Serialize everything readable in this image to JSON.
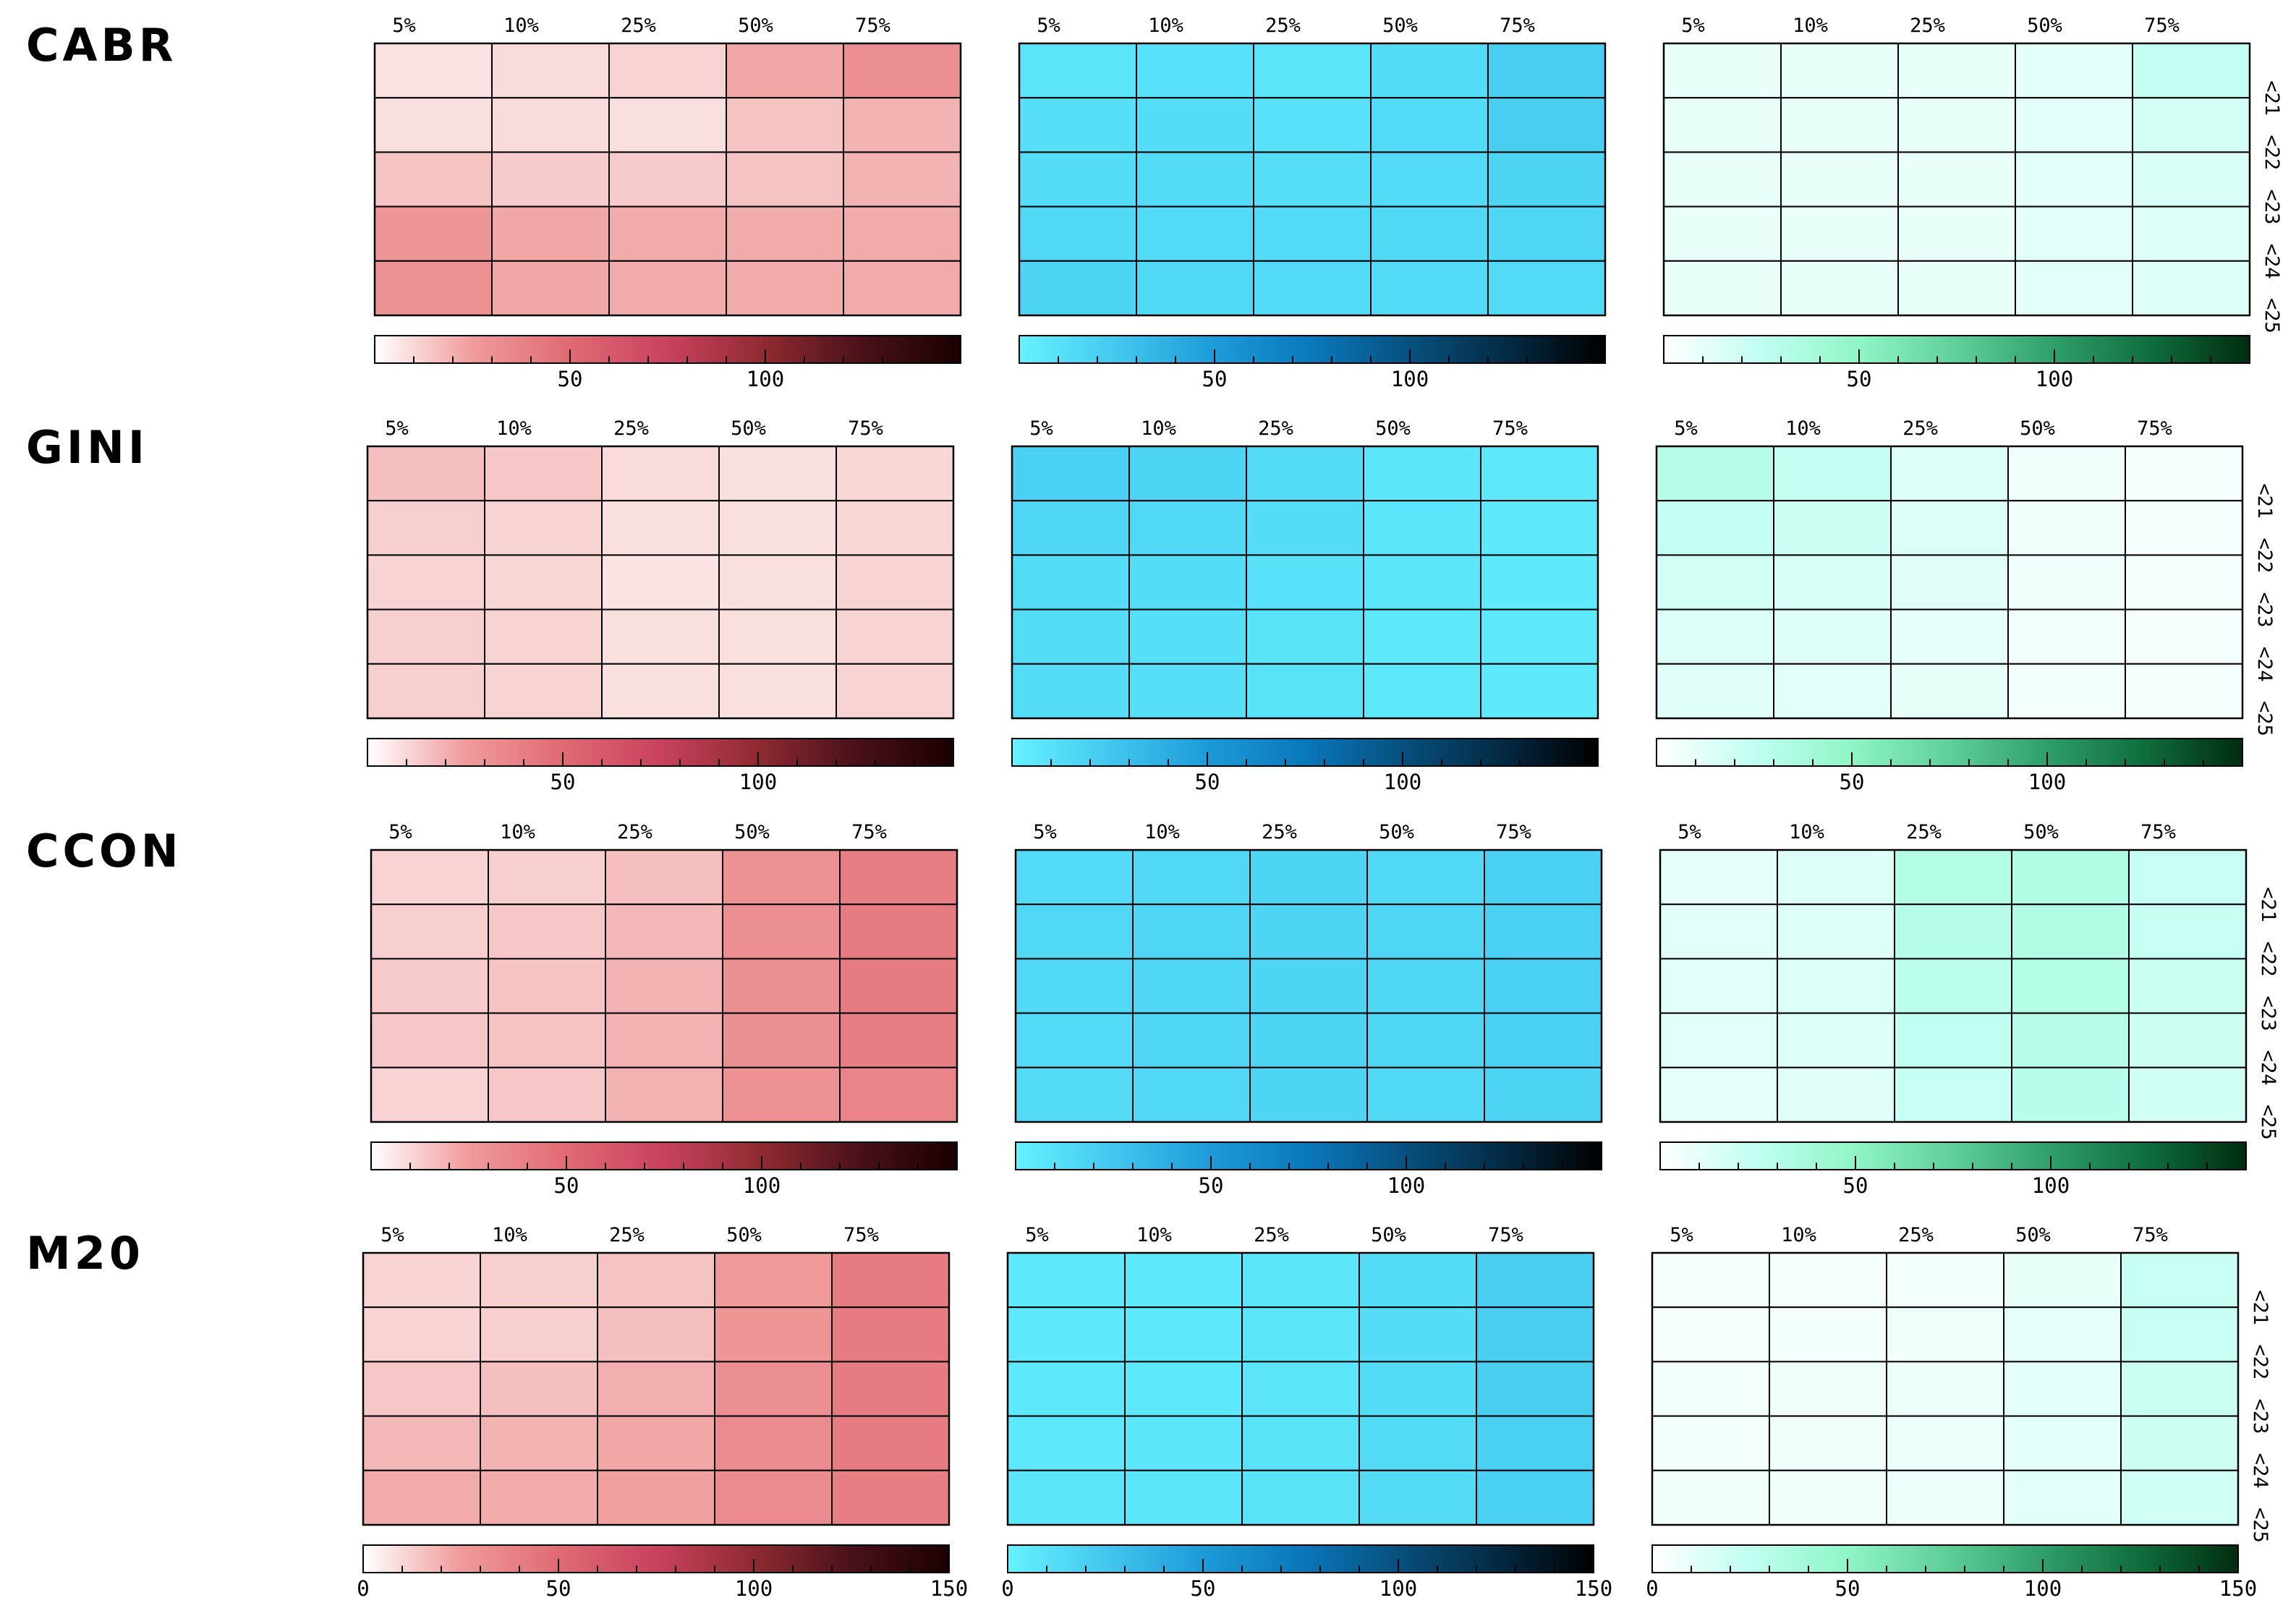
{
  "chart_data": {
    "type": "heatmap",
    "columns": [
      "5%",
      "10%",
      "25%",
      "50%",
      "75%"
    ],
    "rows": [
      "<21",
      "<22",
      "<23",
      "<24",
      "<25"
    ],
    "colorbar": {
      "ticks_short": [
        "50",
        "100"
      ],
      "ticks_full": [
        "0",
        "50",
        "100",
        "150"
      ],
      "range": [
        0,
        150
      ]
    },
    "colormaps": {
      "red": [
        "#ffffff",
        "#f09b9b",
        "#e06a74",
        "#c9425e",
        "#8f2a31",
        "#4a111a",
        "#1a0000"
      ],
      "blue": [
        "#66f2ff",
        "#43c7ef",
        "#1d9bd8",
        "#0a78bb",
        "#07507e",
        "#042a44",
        "#000000"
      ],
      "green": [
        "#ffffff",
        "#c0fff2",
        "#8ff5c6",
        "#5fcf9a",
        "#2f9e6a",
        "#0f6d3c",
        "#002c0f"
      ]
    },
    "panels": [
      {
        "name": "CABR",
        "red": [
          [
            7,
            9,
            11,
            22,
            31
          ],
          [
            8,
            9,
            8,
            15,
            19
          ],
          [
            15,
            13,
            13,
            15,
            19
          ],
          [
            28,
            22,
            21,
            21,
            21
          ],
          [
            30,
            22,
            21,
            21,
            21
          ]
        ],
        "blue": [
          [
            8,
            10,
            8,
            13,
            21
          ],
          [
            11,
            12,
            10,
            14,
            21
          ],
          [
            12,
            13,
            11,
            14,
            17
          ],
          [
            15,
            14,
            14,
            15,
            16
          ],
          [
            17,
            15,
            14,
            14,
            14
          ]
        ],
        "green": [
          [
            9,
            9,
            9,
            11,
            24
          ],
          [
            9,
            9,
            9,
            11,
            17
          ],
          [
            9,
            9,
            9,
            11,
            15
          ],
          [
            9,
            9,
            9,
            11,
            13
          ],
          [
            9,
            9,
            9,
            11,
            13
          ]
        ]
      },
      {
        "name": "GINI",
        "red": [
          [
            16,
            14,
            9,
            8,
            10
          ],
          [
            12,
            11,
            8,
            8,
            10
          ],
          [
            11,
            10,
            7,
            8,
            11
          ],
          [
            12,
            11,
            8,
            8,
            11
          ],
          [
            12,
            11,
            8,
            8,
            11
          ]
        ],
        "blue": [
          [
            20,
            18,
            13,
            7,
            6
          ],
          [
            16,
            15,
            12,
            7,
            5
          ],
          [
            13,
            12,
            10,
            7,
            5
          ],
          [
            12,
            11,
            9,
            6,
            5
          ],
          [
            12,
            11,
            9,
            6,
            5
          ]
        ],
        "green": [
          [
            30,
            24,
            14,
            6,
            4
          ],
          [
            24,
            20,
            13,
            6,
            4
          ],
          [
            18,
            16,
            12,
            6,
            4
          ],
          [
            14,
            13,
            10,
            5,
            4
          ],
          [
            12,
            11,
            9,
            5,
            4
          ]
        ]
      },
      {
        "name": "CCON",
        "red": [
          [
            11,
            12,
            16,
            30,
            40
          ],
          [
            12,
            14,
            18,
            31,
            41
          ],
          [
            13,
            15,
            19,
            31,
            41
          ],
          [
            14,
            15,
            19,
            31,
            40
          ],
          [
            11,
            14,
            19,
            30,
            36
          ]
        ],
        "blue": [
          [
            14,
            15,
            17,
            15,
            20
          ],
          [
            15,
            16,
            17,
            16,
            20
          ],
          [
            15,
            16,
            17,
            16,
            20
          ],
          [
            14,
            16,
            17,
            16,
            20
          ],
          [
            13,
            15,
            17,
            15,
            18
          ]
        ],
        "green": [
          [
            10,
            13,
            31,
            33,
            22
          ],
          [
            11,
            14,
            30,
            32,
            22
          ],
          [
            11,
            14,
            27,
            31,
            21
          ],
          [
            11,
            13,
            25,
            30,
            20
          ],
          [
            10,
            12,
            22,
            29,
            19
          ]
        ]
      },
      {
        "name": "M20",
        "red": [
          [
            11,
            12,
            15,
            26,
            41
          ],
          [
            11,
            12,
            16,
            28,
            41
          ],
          [
            14,
            16,
            20,
            31,
            41
          ],
          [
            18,
            19,
            22,
            33,
            41
          ],
          [
            21,
            21,
            24,
            33,
            40
          ]
        ],
        "blue": [
          [
            5,
            5,
            7,
            12,
            21
          ],
          [
            5,
            6,
            7,
            12,
            21
          ],
          [
            6,
            6,
            8,
            12,
            21
          ],
          [
            6,
            7,
            9,
            13,
            20
          ],
          [
            7,
            7,
            9,
            13,
            19
          ]
        ],
        "green": [
          [
            4,
            4,
            5,
            9,
            22
          ],
          [
            4,
            5,
            6,
            10,
            22
          ],
          [
            5,
            6,
            7,
            11,
            21
          ],
          [
            5,
            6,
            7,
            11,
            20
          ],
          [
            6,
            6,
            7,
            11,
            19
          ]
        ]
      }
    ]
  }
}
